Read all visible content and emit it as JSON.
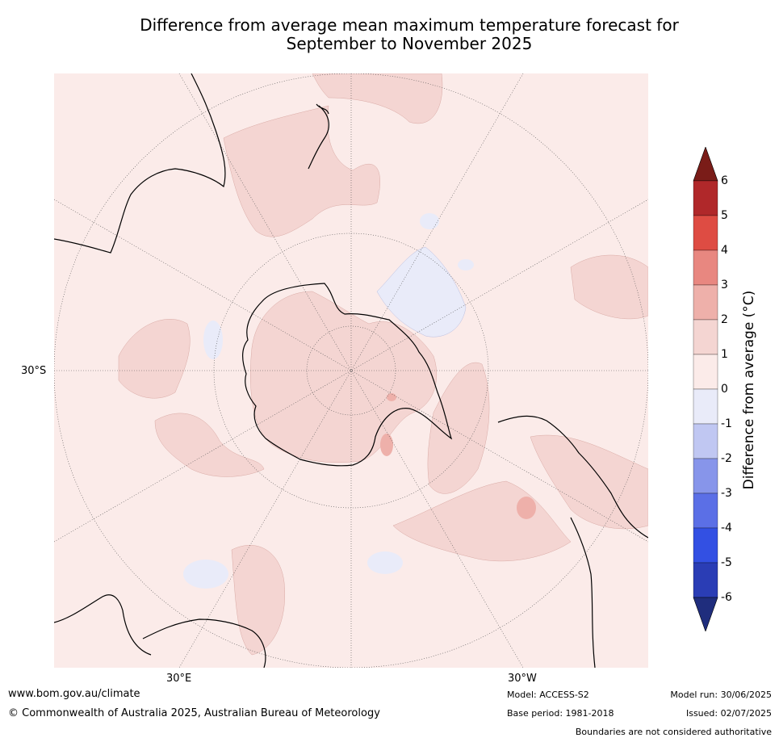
{
  "title_line1": "Difference from average mean maximum temperature forecast for",
  "title_line2": "September to November 2025",
  "map": {
    "projection": "south polar stereographic",
    "lat_label": "30°S",
    "lon_labels": {
      "east": "30°E",
      "west": "30°W"
    },
    "background_category": "0 to 1",
    "land_color": "#000000",
    "regions": [
      {
        "id": "antarctica",
        "category": "1 to 2"
      },
      {
        "id": "south-pacific",
        "category": "1 to 2"
      },
      {
        "id": "south-atlantic",
        "category": "1 to 2"
      },
      {
        "id": "indian-ocean",
        "category": "1 to 2"
      },
      {
        "id": "ross-sea",
        "category": "-1 to 0"
      }
    ]
  },
  "colorbar": {
    "label": "Difference from average (°C)",
    "ticks": [
      "6",
      "5",
      "4",
      "3",
      "2",
      "1",
      "0",
      "-1",
      "-2",
      "-3",
      "-4",
      "-5",
      "-6"
    ],
    "over_color": "#7a1c18",
    "under_color": "#1f2d7d",
    "colors": [
      "#b0282a",
      "#de4c43",
      "#e88780",
      "#eeb0aa",
      "#f4d5d2",
      "#fbebe9",
      "#e9ebf9",
      "#c0c7f2",
      "#8795ea",
      "#5b6fe6",
      "#3350e3",
      "#2a3db5"
    ]
  },
  "footer": {
    "url": "www.bom.gov.au/climate",
    "copyright": "© Commonwealth of Australia 2025, Australian Bureau of Meteorology",
    "model": "Model: ACCESS-S2",
    "base_period": "Base period: 1981-2018",
    "model_run": "Model run: 30/06/2025",
    "issued": "Issued: 02/07/2025",
    "disclaimer": "Boundaries are not considered authoritative"
  }
}
